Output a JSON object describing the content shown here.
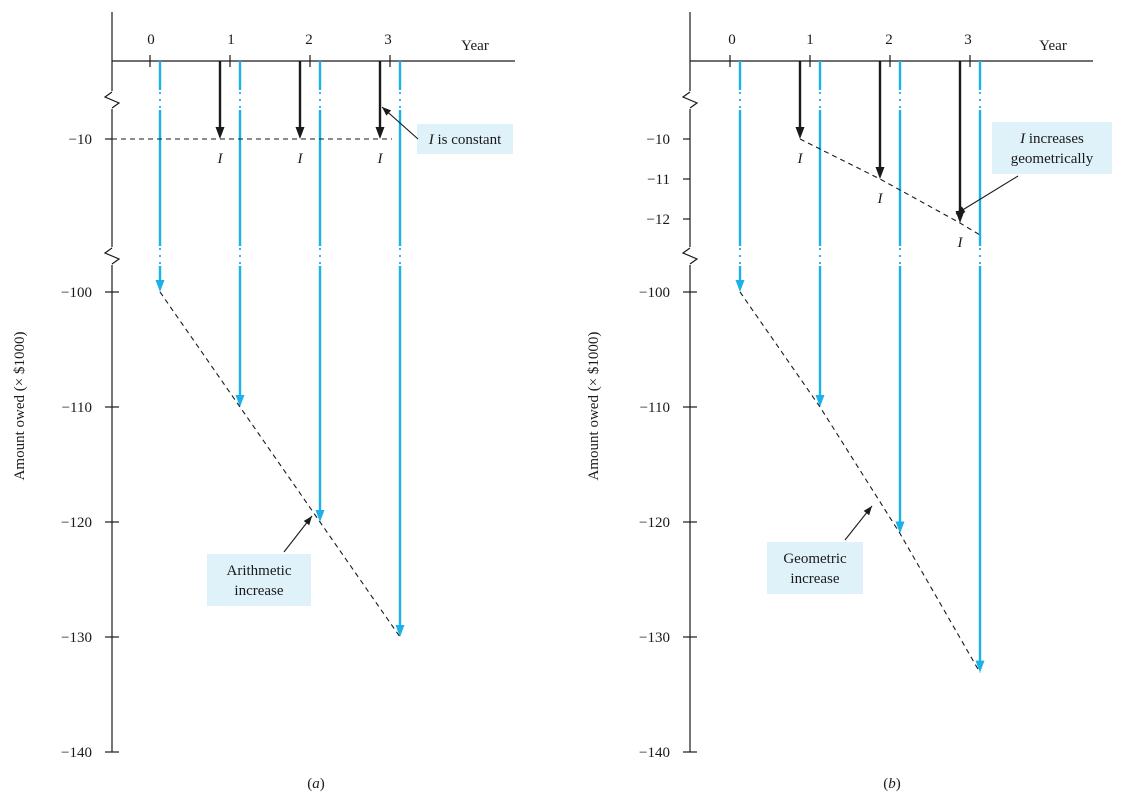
{
  "figure_colors": {
    "principal_arrow": "#1ab2e8",
    "interest_arrow": "#1a1a1a",
    "callout_fill": "#dff2fa",
    "axis": "#1a1a1a"
  },
  "chart_data": [
    {
      "type": "cash-flow",
      "panel_label": "(a)",
      "xlabel": "Year",
      "ylabel": "Amount owed (× $1000)",
      "x_ticks": [
        "0",
        "1",
        "2",
        "3"
      ],
      "y_ticks_upper": [
        "−10"
      ],
      "y_ticks_lower": [
        "−100",
        "−110",
        "−120",
        "−130",
        "−140"
      ],
      "y_break": true,
      "amount_owed": [
        {
          "year": 0,
          "value": -100
        },
        {
          "year": 1,
          "value": -110
        },
        {
          "year": 2,
          "value": -120
        },
        {
          "year": 3,
          "value": -130
        }
      ],
      "interest": [
        {
          "year": 1,
          "value": -10,
          "label": "I"
        },
        {
          "year": 2,
          "value": -10,
          "label": "I"
        },
        {
          "year": 3,
          "value": -10,
          "label": "I"
        }
      ],
      "callouts": {
        "interest": "I is constant",
        "owed_line": "Arithmetic increase"
      }
    },
    {
      "type": "cash-flow",
      "panel_label": "(b)",
      "xlabel": "Year",
      "ylabel": "Amount owed (× $1000)",
      "x_ticks": [
        "0",
        "1",
        "2",
        "3"
      ],
      "y_ticks_upper": [
        "−10",
        "−11",
        "−12"
      ],
      "y_ticks_lower": [
        "−100",
        "−110",
        "−120",
        "−130",
        "−140"
      ],
      "y_break": true,
      "amount_owed": [
        {
          "year": 0,
          "value": -100
        },
        {
          "year": 1,
          "value": -110
        },
        {
          "year": 2,
          "value": -121
        },
        {
          "year": 3,
          "value": -133.1
        }
      ],
      "interest": [
        {
          "year": 1,
          "value": -10,
          "label": "I"
        },
        {
          "year": 2,
          "value": -11,
          "label": "I"
        },
        {
          "year": 3,
          "value": -12.1,
          "label": "I"
        }
      ],
      "callouts": {
        "interest": "I increases geometrically",
        "owed_line": "Geometric increase"
      }
    }
  ]
}
